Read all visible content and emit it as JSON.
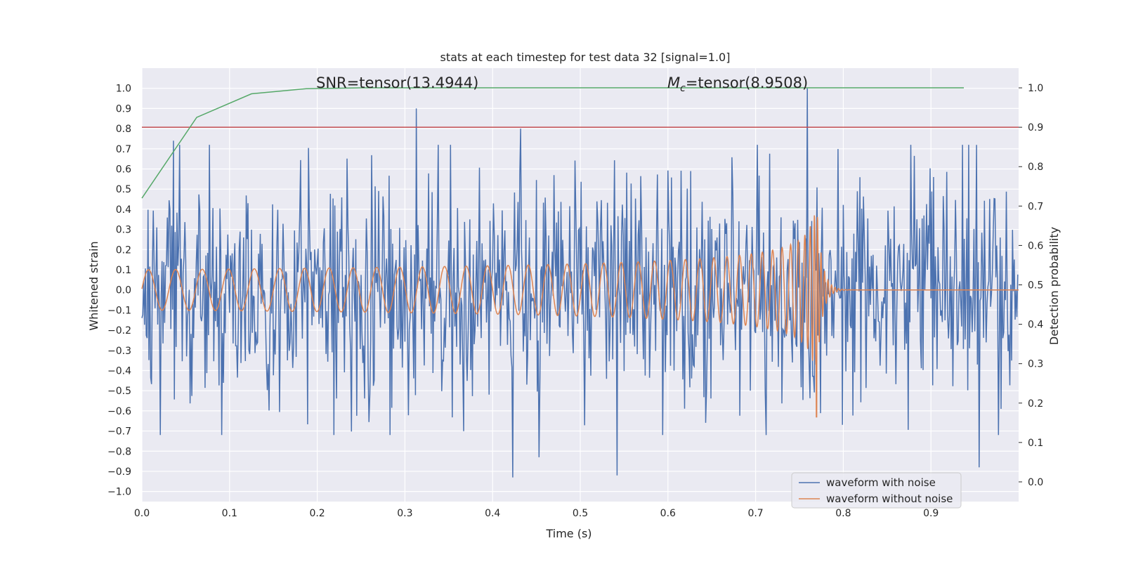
{
  "chart_data": {
    "type": "line",
    "title": "stats at each timestep for test data 32 [signal=1.0]",
    "xlabel": "Time (s)",
    "ylabel_left": "Whitened strain",
    "ylabel_right": "Detection probability",
    "xlim": [
      0.0,
      1.0
    ],
    "ylim_left": [
      -1.05,
      1.1
    ],
    "ylim_right": [
      -0.05,
      1.05
    ],
    "x_ticks": [
      "0.0",
      "0.1",
      "0.2",
      "0.3",
      "0.4",
      "0.5",
      "0.6",
      "0.7",
      "0.8",
      "0.9"
    ],
    "y_ticks_left": [
      "1.0",
      "0.9",
      "0.8",
      "0.7",
      "0.6",
      "0.5",
      "0.4",
      "0.3",
      "0.2",
      "0.1",
      "0.0",
      "−0.1",
      "−0.2",
      "−0.3",
      "−0.4",
      "−0.5",
      "−0.6",
      "−0.7",
      "−0.8",
      "−0.9",
      "−1.0"
    ],
    "y_ticks_right": [
      "1.0",
      "0.9",
      "0.8",
      "0.7",
      "0.6",
      "0.5",
      "0.4",
      "0.3",
      "0.2",
      "0.1",
      "0.0"
    ],
    "grid": true,
    "legend_position": "lower-right",
    "annotations": {
      "snr": "SNR=tensor(13.4944)",
      "mc_prefix": "M",
      "mc_sub": "c",
      "mc_value": "=tensor(8.9508)"
    },
    "threshold": {
      "axis": "right",
      "value": 0.9,
      "color": "#c44e52"
    },
    "series": [
      {
        "name": "waveform with noise",
        "axis": "left",
        "color": "#4c72b0",
        "note": "random noise, ~1000 samples, std approx 0.28",
        "peaks": [
          {
            "x": 0.036,
            "y": 0.74
          },
          {
            "x": 0.313,
            "y": 0.9
          },
          {
            "x": 0.432,
            "y": 0.8
          },
          {
            "x": 0.759,
            "y": 1.0
          },
          {
            "x": 0.423,
            "y": -0.93
          },
          {
            "x": 0.542,
            "y": -0.92
          },
          {
            "x": 0.955,
            "y": -0.88
          },
          {
            "x": 0.453,
            "y": -0.83
          }
        ]
      },
      {
        "name": "waveform without noise",
        "axis": "left",
        "color": "#dd8452",
        "chirp": {
          "start_freq_hz": 32,
          "coalescence_s": 0.77,
          "start_amplitude": 0.1,
          "peak_amplitude": 0.4,
          "min_value": -0.63
        }
      },
      {
        "name": "detection probability",
        "axis": "right",
        "color": "#55a868",
        "x": [
          0.0,
          0.0625,
          0.125,
          0.1875,
          0.25,
          0.3125,
          0.375,
          0.4375,
          0.5,
          0.5625,
          0.625,
          0.6875,
          0.75,
          0.8125,
          0.875,
          0.9375
        ],
        "y": [
          0.72,
          0.925,
          0.985,
          0.998,
          1.0,
          1.0,
          1.0,
          1.0,
          1.0,
          1.0,
          1.0,
          1.0,
          1.0,
          1.0,
          1.0,
          1.0
        ]
      }
    ]
  }
}
